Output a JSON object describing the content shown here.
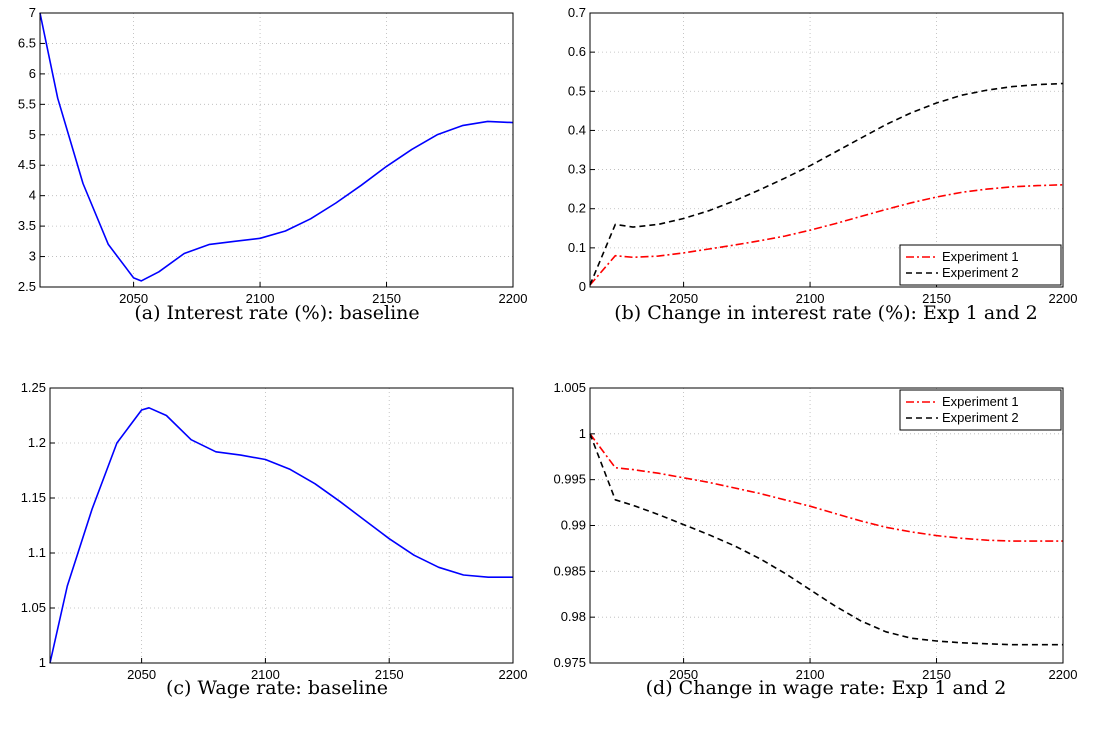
{
  "chart_data": [
    {
      "type": "line",
      "caption": "(a) Interest rate (%): baseline",
      "xlim": [
        2013,
        2200
      ],
      "ylim": [
        2.5,
        7
      ],
      "xticks": [
        2050,
        2100,
        2150,
        2200
      ],
      "xtick_labels": [
        "2050",
        "2100",
        "2150",
        "2200"
      ],
      "yticks": [
        2.5,
        3,
        3.5,
        4,
        4.5,
        5,
        5.5,
        6,
        6.5,
        7
      ],
      "ytick_labels": [
        "2.5",
        "3",
        "3.5",
        "4",
        "4.5",
        "5",
        "5.5",
        "6",
        "6.5",
        "7"
      ],
      "grid": true,
      "legend": null,
      "series": [
        {
          "color": "#0000ff",
          "dash": "solid",
          "x": [
            2013,
            2020,
            2030,
            2040,
            2050,
            2053,
            2060,
            2070,
            2080,
            2090,
            2100,
            2110,
            2120,
            2130,
            2140,
            2150,
            2160,
            2170,
            2180,
            2190,
            2200
          ],
          "y": [
            7.0,
            5.6,
            4.2,
            3.2,
            2.65,
            2.6,
            2.75,
            3.05,
            3.2,
            3.25,
            3.3,
            3.42,
            3.62,
            3.88,
            4.17,
            4.48,
            4.76,
            5.0,
            5.15,
            5.22,
            5.2
          ]
        }
      ]
    },
    {
      "type": "line",
      "caption": "(b) Change in interest rate (%): Exp 1 and 2",
      "xlim": [
        2013,
        2200
      ],
      "ylim": [
        0,
        0.7
      ],
      "xticks": [
        2050,
        2100,
        2150,
        2200
      ],
      "xtick_labels": [
        "2050",
        "2100",
        "2150",
        "2200"
      ],
      "yticks": [
        0,
        0.1,
        0.2,
        0.3,
        0.4,
        0.5,
        0.6,
        0.7
      ],
      "ytick_labels": [
        "0",
        "0.1",
        "0.2",
        "0.3",
        "0.4",
        "0.5",
        "0.6",
        "0.7"
      ],
      "grid": true,
      "legend": "bottom-right",
      "series": [
        {
          "name": "Experiment 1",
          "color": "#ff0000",
          "dash": "dashdot",
          "x": [
            2013,
            2023,
            2030,
            2040,
            2050,
            2060,
            2070,
            2080,
            2090,
            2100,
            2110,
            2120,
            2130,
            2140,
            2150,
            2160,
            2170,
            2180,
            2190,
            2200
          ],
          "y": [
            0.005,
            0.08,
            0.076,
            0.079,
            0.087,
            0.097,
            0.107,
            0.118,
            0.13,
            0.145,
            0.162,
            0.18,
            0.198,
            0.215,
            0.23,
            0.242,
            0.25,
            0.256,
            0.259,
            0.261
          ]
        },
        {
          "name": "Experiment 2",
          "color": "#000000",
          "dash": "dashed",
          "x": [
            2013,
            2023,
            2030,
            2040,
            2050,
            2060,
            2070,
            2080,
            2090,
            2100,
            2110,
            2120,
            2130,
            2140,
            2150,
            2160,
            2170,
            2180,
            2190,
            2200
          ],
          "y": [
            0.005,
            0.16,
            0.153,
            0.16,
            0.175,
            0.195,
            0.22,
            0.248,
            0.278,
            0.31,
            0.345,
            0.38,
            0.415,
            0.445,
            0.47,
            0.49,
            0.503,
            0.512,
            0.517,
            0.52
          ]
        }
      ]
    },
    {
      "type": "line",
      "caption": "(c) Wage rate: baseline",
      "xlim": [
        2013,
        2200
      ],
      "ylim": [
        1,
        1.25
      ],
      "xticks": [
        2050,
        2100,
        2150,
        2200
      ],
      "xtick_labels": [
        "2050",
        "2100",
        "2150",
        "2200"
      ],
      "yticks": [
        1,
        1.05,
        1.1,
        1.15,
        1.2,
        1.25
      ],
      "ytick_labels": [
        "1",
        "1.05",
        "1.1",
        "1.15",
        "1.2",
        "1.25"
      ],
      "grid": true,
      "legend": null,
      "series": [
        {
          "color": "#0000ff",
          "dash": "solid",
          "x": [
            2013,
            2020,
            2030,
            2040,
            2050,
            2053,
            2060,
            2070,
            2080,
            2090,
            2100,
            2110,
            2120,
            2130,
            2140,
            2150,
            2160,
            2170,
            2180,
            2190,
            2200
          ],
          "y": [
            1.0,
            1.07,
            1.14,
            1.2,
            1.23,
            1.232,
            1.225,
            1.203,
            1.192,
            1.189,
            1.185,
            1.176,
            1.163,
            1.147,
            1.13,
            1.113,
            1.098,
            1.087,
            1.08,
            1.078,
            1.078
          ]
        }
      ]
    },
    {
      "type": "line",
      "caption": "(d) Change in wage rate: Exp 1 and 2",
      "xlim": [
        2013,
        2200
      ],
      "ylim": [
        0.975,
        1.005
      ],
      "xticks": [
        2050,
        2100,
        2150,
        2200
      ],
      "xtick_labels": [
        "2050",
        "2100",
        "2150",
        "2200"
      ],
      "yticks": [
        0.975,
        0.98,
        0.985,
        0.99,
        0.995,
        1,
        1.005
      ],
      "ytick_labels": [
        "0.975",
        "0.98",
        "0.985",
        "0.99",
        "0.995",
        "1",
        "1.005"
      ],
      "grid": true,
      "legend": "top-right",
      "series": [
        {
          "name": "Experiment 1",
          "color": "#ff0000",
          "dash": "dashdot",
          "x": [
            2013,
            2023,
            2030,
            2040,
            2050,
            2060,
            2070,
            2080,
            2090,
            2100,
            2110,
            2120,
            2130,
            2140,
            2150,
            2160,
            2170,
            2180,
            2190,
            2200
          ],
          "y": [
            1.0,
            0.9963,
            0.9961,
            0.9957,
            0.9952,
            0.9947,
            0.9941,
            0.9935,
            0.9928,
            0.9921,
            0.9913,
            0.9905,
            0.9898,
            0.9893,
            0.9889,
            0.9886,
            0.9884,
            0.9883,
            0.9883,
            0.9883
          ]
        },
        {
          "name": "Experiment 2",
          "color": "#000000",
          "dash": "dashed",
          "x": [
            2013,
            2023,
            2030,
            2040,
            2050,
            2060,
            2070,
            2080,
            2090,
            2100,
            2110,
            2120,
            2130,
            2140,
            2150,
            2160,
            2170,
            2180,
            2190,
            2200
          ],
          "y": [
            1.0,
            0.9928,
            0.9922,
            0.9912,
            0.9901,
            0.989,
            0.9878,
            0.9864,
            0.9848,
            0.983,
            0.9812,
            0.9796,
            0.9784,
            0.9777,
            0.9774,
            0.9772,
            0.9771,
            0.977,
            0.977,
            0.977
          ]
        }
      ]
    }
  ]
}
